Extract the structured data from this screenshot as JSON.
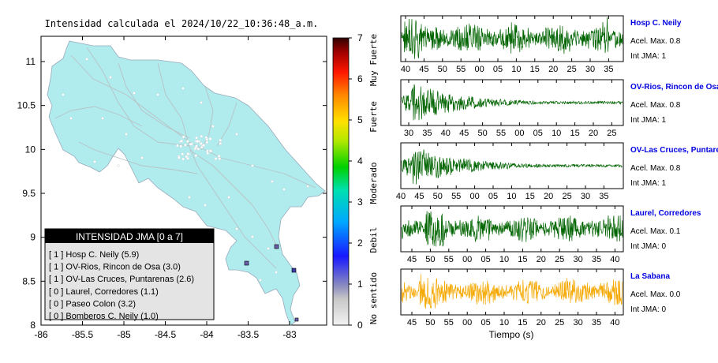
{
  "map": {
    "title": "Intensidad calculada el 2024/10/22_10:36:48_a.m.",
    "x_ticks": [
      "-86",
      "-85.5",
      "-85",
      "-84.5",
      "-84",
      "-83.5",
      "-83"
    ],
    "y_ticks": [
      "11",
      "10.5",
      "10",
      "9.5",
      "9",
      "8.5",
      "8"
    ],
    "legend": {
      "header": "INTENSIDAD JMA [0 a 7]",
      "items": [
        "[ 1 ]  Hosp C. Neily (5.9)",
        "[ 1 ]  OV-Rios, Rincon de Osa (3.0)",
        "[ 1 ]  OV-Las Cruces, Puntarenas (2.6)",
        "[ 0 ]  Laurel, Corredores (1.1)",
        "[ 0 ]  Paseo Colon (3.2)",
        "[ 0 ]  Bomberos C. Neily (1.0)"
      ]
    }
  },
  "colorbar": {
    "ticks": [
      "7",
      "6",
      "5",
      "4",
      "3",
      "2",
      "1",
      "0"
    ],
    "labels": [
      "Muy Fuerte",
      "Fuerte",
      "Moderado",
      "Debil",
      "No sentido"
    ]
  },
  "stations": [
    {
      "name": "Hosp C. Neily",
      "acel": "Acel. Max. 0.8",
      "int": "Int JMA: 1",
      "ticks": [
        "40",
        "45",
        "50",
        "55",
        "00",
        "05",
        "10",
        "15",
        "20",
        "25",
        "30",
        "35"
      ],
      "color": "#006400",
      "amp": 1.0,
      "decay": false,
      "burst": 0.05,
      "seed": 11
    },
    {
      "name": "OV-Rios, Rincon de Osa",
      "acel": "Acel. Max. 0.8",
      "int": "Int JMA: 1",
      "ticks": [
        "30",
        "35",
        "40",
        "45",
        "50",
        "55",
        "00",
        "05",
        "10",
        "15",
        "20",
        "25"
      ],
      "color": "#006400",
      "amp": 1.0,
      "decay": true,
      "burst": 0.04,
      "seed": 23
    },
    {
      "name": "OV-Las Cruces, Puntarenas",
      "acel": "Acel. Max. 0.8",
      "int": "Int JMA: 1",
      "ticks": [
        "40",
        "45",
        "50",
        "55",
        "00",
        "05",
        "10",
        "15",
        "20",
        "25",
        "30",
        "35"
      ],
      "color": "#006400",
      "amp": 1.0,
      "decay": true,
      "burst": 0.05,
      "seed": 37
    },
    {
      "name": "Laurel, Corredores",
      "acel": "Acel. Max. 0.1",
      "int": "Int JMA: 0",
      "ticks": [
        "45",
        "50",
        "55",
        "00",
        "05",
        "10",
        "15",
        "20",
        "25",
        "30",
        "35",
        "40"
      ],
      "color": "#006400",
      "amp": 0.9,
      "decay": false,
      "burst": 0.15,
      "seed": 41
    },
    {
      "name": "La Sabana",
      "acel": "Acel. Max. 0.0",
      "int": "Int JMA: 0",
      "ticks": [
        "45",
        "50",
        "55",
        "00",
        "05",
        "10",
        "15",
        "20",
        "25",
        "30",
        "35",
        "40"
      ],
      "color": "#f5a800",
      "amp": 0.9,
      "decay": false,
      "burst": 0.12,
      "seed": 53
    }
  ],
  "xlabel": "Tiempo (s)"
}
